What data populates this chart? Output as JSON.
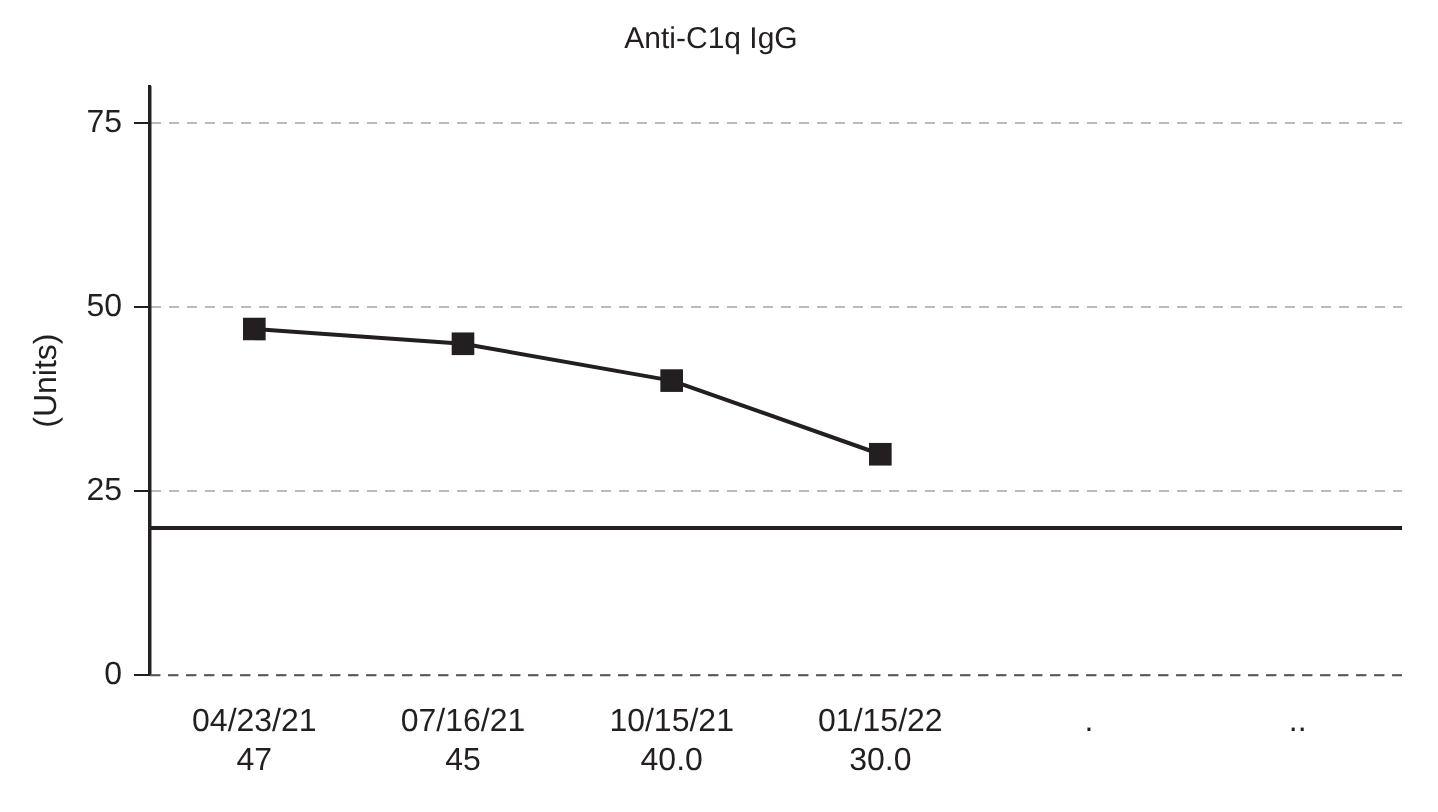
{
  "chart_data": {
    "type": "line",
    "title": "Anti-C1q IgG",
    "ylabel": "(Units)",
    "categories": [
      "04/23/21",
      "07/16/21",
      "10/15/21",
      "01/15/22",
      ".",
      ".."
    ],
    "series": [
      {
        "color": "#231f20",
        "values": [
          47,
          45,
          40,
          30,
          null,
          null
        ],
        "value_labels": [
          "47",
          "45",
          "40.0",
          "30.0",
          null,
          null
        ]
      }
    ],
    "ylim": [
      0,
      80
    ],
    "yticks": [
      0,
      25,
      50,
      75
    ],
    "grid": "y",
    "marker": "square",
    "line_style": "solid",
    "legend": false,
    "ref_lines": [
      {
        "axis": "y",
        "value": 20,
        "color": "#231f20",
        "line_style": "solid"
      }
    ]
  }
}
